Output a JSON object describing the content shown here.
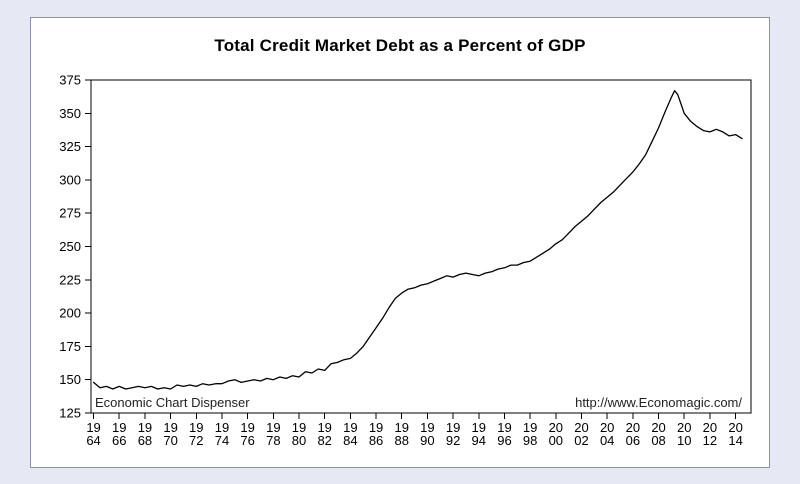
{
  "page": {
    "background": "#e6e9f4"
  },
  "chart_data": {
    "type": "line",
    "title": "Total Credit Market Debt as a Percent of GDP",
    "xlabel": "",
    "ylabel": "",
    "legend": "none",
    "grid": false,
    "line_color": "#000000",
    "ylim": [
      125,
      375
    ],
    "yticks": [
      125,
      150,
      175,
      200,
      225,
      250,
      275,
      300,
      325,
      350,
      375
    ],
    "xlim": [
      1963.8,
      2015.2
    ],
    "xticks": [
      1964,
      1966,
      1968,
      1970,
      1972,
      1974,
      1976,
      1978,
      1980,
      1982,
      1984,
      1986,
      1988,
      1990,
      1992,
      1994,
      1996,
      1998,
      2000,
      2002,
      2004,
      2006,
      2008,
      2010,
      2012,
      2014
    ],
    "x": [
      1964,
      1964.5,
      1965,
      1965.5,
      1966,
      1966.5,
      1967,
      1967.5,
      1968,
      1968.5,
      1969,
      1969.5,
      1970,
      1970.5,
      1971,
      1971.5,
      1972,
      1972.5,
      1973,
      1973.5,
      1974,
      1974.5,
      1975,
      1975.5,
      1976,
      1976.5,
      1977,
      1977.5,
      1978,
      1978.5,
      1979,
      1979.5,
      1980,
      1980.5,
      1981,
      1981.5,
      1982,
      1982.5,
      1983,
      1983.5,
      1984,
      1984.5,
      1985,
      1985.5,
      1986,
      1986.5,
      1987,
      1987.5,
      1988,
      1988.5,
      1989,
      1989.5,
      1990,
      1990.5,
      1991,
      1991.5,
      1992,
      1992.5,
      1993,
      1993.5,
      1994,
      1994.5,
      1995,
      1995.5,
      1996,
      1996.5,
      1997,
      1997.5,
      1998,
      1998.5,
      1999,
      1999.5,
      2000,
      2000.5,
      2001,
      2001.5,
      2002,
      2002.5,
      2003,
      2003.5,
      2004,
      2004.5,
      2005,
      2005.5,
      2006,
      2006.5,
      2007,
      2007.5,
      2008,
      2008.5,
      2009,
      2009.25,
      2009.5,
      2009.75,
      2010,
      2010.5,
      2011,
      2011.5,
      2012,
      2012.5,
      2013,
      2013.5,
      2014,
      2014.5
    ],
    "values": [
      148,
      144,
      145,
      143,
      145,
      143,
      144,
      145,
      144,
      145,
      143,
      144,
      143,
      146,
      145,
      146,
      145,
      147,
      146,
      147,
      147,
      149,
      150,
      148,
      149,
      150,
      149,
      151,
      150,
      152,
      151,
      153,
      152,
      156,
      155,
      158,
      157,
      162,
      163,
      165,
      166,
      170,
      175,
      182,
      189,
      196,
      204,
      211,
      215,
      218,
      219,
      221,
      222,
      224,
      226,
      228,
      227,
      229,
      230,
      229,
      228,
      230,
      231,
      233,
      234,
      236,
      236,
      238,
      239,
      242,
      245,
      248,
      252,
      255,
      260,
      265,
      269,
      273,
      278,
      283,
      287,
      291,
      296,
      301,
      306,
      312,
      319,
      329,
      339,
      351,
      362,
      367,
      364,
      357,
      350,
      344,
      340,
      337,
      336,
      338,
      336,
      333,
      334,
      331
    ],
    "annotations": {
      "left": "Economic Chart Dispenser",
      "right": "http://www.Economagic.com/"
    }
  }
}
